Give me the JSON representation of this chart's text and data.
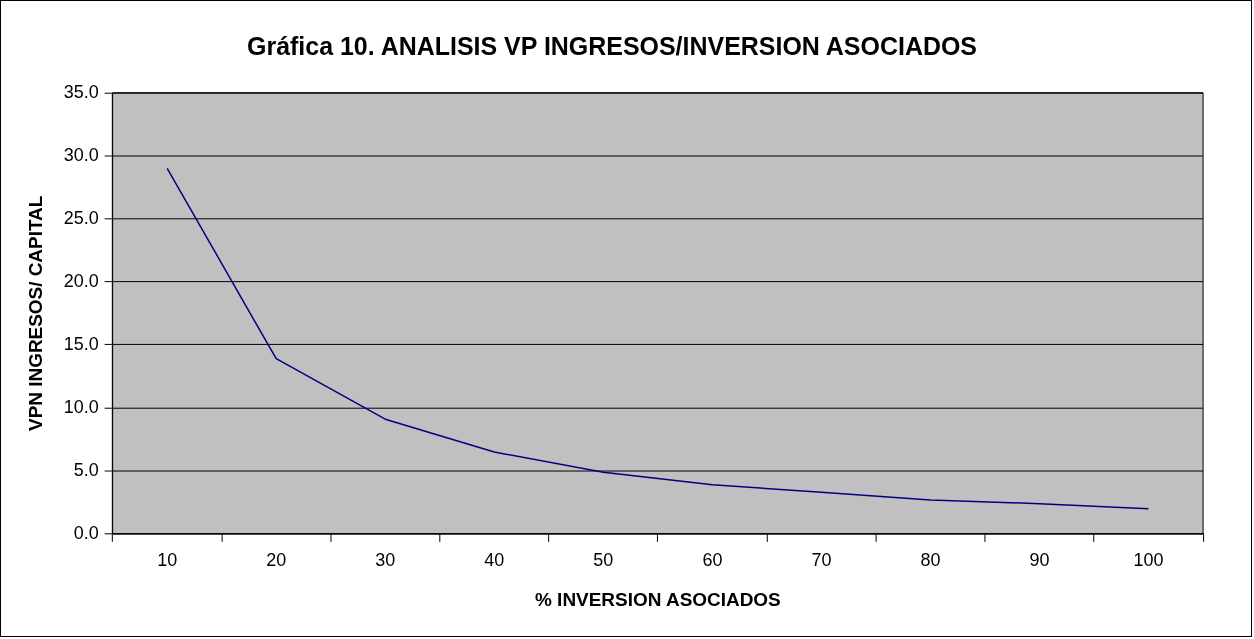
{
  "chart_data": {
    "type": "line",
    "title": "Gráfica 10. ANALISIS VP INGRESOS/INVERSION ASOCIADOS",
    "xlabel": "% INVERSION ASOCIADOS",
    "ylabel": "VPN INGRESOS/ CAPITAL",
    "categories": [
      "10",
      "20",
      "30",
      "40",
      "50",
      "60",
      "70",
      "80",
      "90",
      "100"
    ],
    "series": [
      {
        "color": "#000080",
        "values": [
          29.0,
          13.9,
          9.1,
          6.5,
          4.9,
          3.9,
          3.3,
          2.7,
          2.4,
          2.0
        ]
      }
    ],
    "ylim": [
      0,
      35
    ],
    "yticks": [
      {
        "value": 0,
        "label": "0.0"
      },
      {
        "value": 5,
        "label": "5.0"
      },
      {
        "value": 10,
        "label": "10.0"
      },
      {
        "value": 15,
        "label": "15.0"
      },
      {
        "value": 20,
        "label": "20.0"
      },
      {
        "value": 25,
        "label": "25.0"
      },
      {
        "value": 30,
        "label": "30.0"
      },
      {
        "value": 35,
        "label": "35.0"
      }
    ],
    "grid": "y",
    "legend": false,
    "marker": "none",
    "line_style": "solid"
  }
}
